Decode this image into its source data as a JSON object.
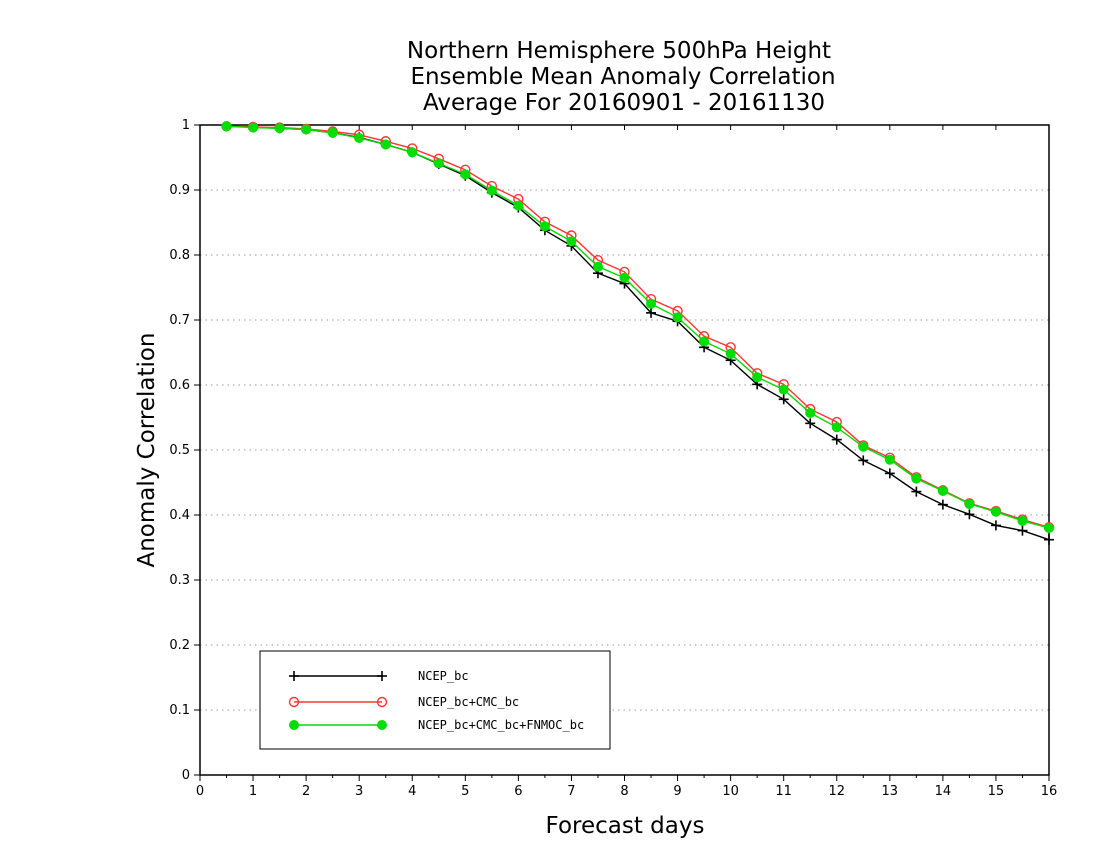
{
  "chart_data": {
    "type": "line",
    "title": [
      "Northern Hemisphere 500hPa Height",
      "Ensemble Mean Anomaly Correlation",
      "Average For 20160901 - 20161130"
    ],
    "xlabel": "Forecast days",
    "ylabel": "Anomaly Correlation",
    "xlim": [
      0,
      16
    ],
    "ylim": [
      0,
      1
    ],
    "x_ticks": [
      "0",
      "1",
      "2",
      "3",
      "4",
      "5",
      "6",
      "7",
      "8",
      "9",
      "10",
      "11",
      "12",
      "13",
      "14",
      "15",
      "16"
    ],
    "y_ticks": [
      "0",
      "0.1",
      "0.2",
      "0.3",
      "0.4",
      "0.5",
      "0.6",
      "0.7",
      "0.8",
      "0.9",
      "1"
    ],
    "grid": true,
    "legend_position": "bottom-left",
    "x": [
      0.5,
      1,
      1.5,
      2,
      2.5,
      3,
      3.5,
      4,
      4.5,
      5,
      5.5,
      6,
      6.5,
      7,
      7.5,
      8,
      8.5,
      9,
      9.5,
      10,
      10.5,
      11,
      11.5,
      12,
      12.5,
      13,
      13.5,
      14,
      14.5,
      15,
      15.5,
      16
    ],
    "series": [
      {
        "name": "NCEP_bc",
        "color": "#000000",
        "marker": "plus",
        "values": [
          0.998,
          0.997,
          0.995,
          0.993,
          0.988,
          0.981,
          0.97,
          0.958,
          0.94,
          0.922,
          0.896,
          0.873,
          0.838,
          0.814,
          0.772,
          0.756,
          0.711,
          0.698,
          0.658,
          0.638,
          0.601,
          0.578,
          0.541,
          0.516,
          0.484,
          0.464,
          0.436,
          0.416,
          0.401,
          0.384,
          0.376,
          0.362
        ]
      },
      {
        "name": "NCEP_bc+CMC_bc",
        "color": "#ff3333",
        "marker": "open-circle",
        "values": [
          0.998,
          0.997,
          0.996,
          0.994,
          0.99,
          0.985,
          0.975,
          0.964,
          0.948,
          0.931,
          0.906,
          0.886,
          0.851,
          0.83,
          0.792,
          0.774,
          0.732,
          0.714,
          0.675,
          0.658,
          0.618,
          0.601,
          0.563,
          0.543,
          0.507,
          0.488,
          0.458,
          0.438,
          0.418,
          0.406,
          0.393,
          0.381
        ]
      },
      {
        "name": "NCEP_bc+CMC_bc+FNMOC_bc",
        "color": "#00dd00",
        "marker": "filled-circle",
        "values": [
          0.998,
          0.996,
          0.995,
          0.993,
          0.988,
          0.98,
          0.97,
          0.958,
          0.941,
          0.924,
          0.899,
          0.876,
          0.844,
          0.821,
          0.782,
          0.765,
          0.725,
          0.704,
          0.667,
          0.648,
          0.612,
          0.593,
          0.557,
          0.535,
          0.505,
          0.485,
          0.456,
          0.437,
          0.417,
          0.405,
          0.391,
          0.38
        ]
      }
    ]
  }
}
